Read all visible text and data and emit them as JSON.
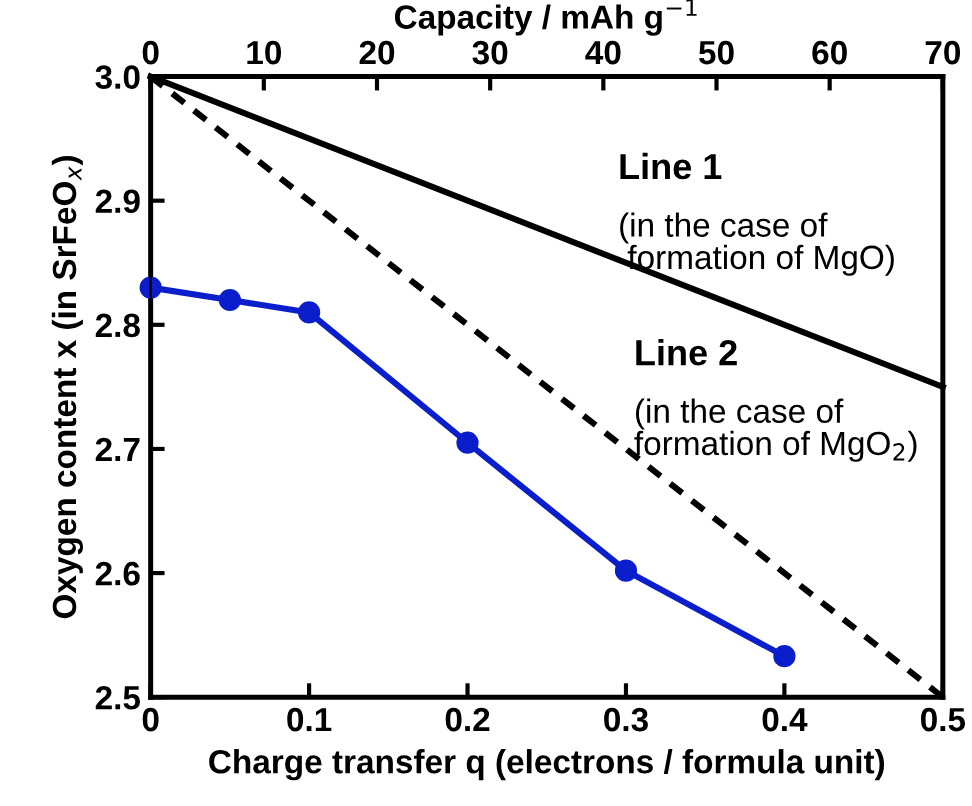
{
  "chart_data": {
    "type": "line",
    "xlabel": "Charge transfer q (electrons / formula unit)",
    "ylabel": "Oxygen content x (in SrFeO$_{x}$)",
    "x2label": "Capacity / mAh g$^{−1}$",
    "xlim": [
      0,
      0.5
    ],
    "xticks": [
      0,
      0.1,
      0.2,
      0.3,
      0.4,
      0.5
    ],
    "ylim": [
      2.5,
      3.0
    ],
    "yticks": [
      2.5,
      2.6,
      2.7,
      2.8,
      2.9,
      {
        "value": 3.0,
        "label": "3.0"
      }
    ],
    "x2lim": [
      0,
      70
    ],
    "x2ticks": [
      0,
      10,
      20,
      30,
      40,
      50,
      60,
      70
    ],
    "grid": false,
    "series": [
      {
        "x": [
          0,
          0.05,
          0.1,
          0.2,
          0.3,
          0.4
        ],
        "values": [
          2.83,
          2.82,
          2.81,
          2.705,
          2.602,
          2.533
        ],
        "color": "#0a1ecc",
        "marker": "circle",
        "line_style": "solid"
      },
      {
        "x": [
          0,
          0.5
        ],
        "values": [
          3.0,
          2.75
        ],
        "color": "#000000",
        "marker": "none",
        "line_style": "solid"
      },
      {
        "x": [
          0,
          0.5
        ],
        "values": [
          3.0,
          2.5
        ],
        "color": "#000000",
        "marker": "none",
        "line_style": "dotted"
      }
    ],
    "annotations": [
      "Line 1",
      "(in the case of\n formation of MgO)",
      "Line 2",
      "(in the case of\nformation of MgO$_{2}$)"
    ]
  }
}
